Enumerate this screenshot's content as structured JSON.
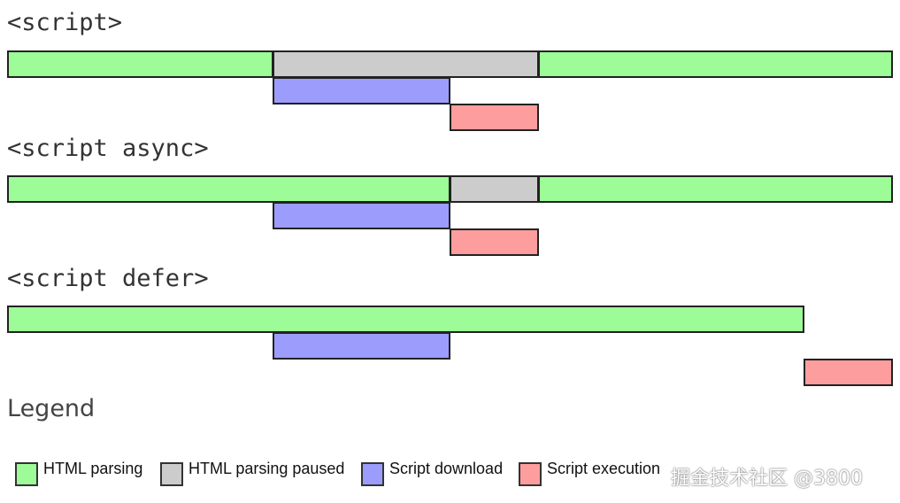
{
  "colors": {
    "parsing": "#9dfc97",
    "paused": "#cccccc",
    "download": "#9c9cfd",
    "execution": "#fd9d9d"
  },
  "sections": [
    {
      "title": "<script>",
      "events": [
        {
          "kind": "parsing",
          "start": 0,
          "end": 3
        },
        {
          "kind": "paused",
          "start": 3,
          "end": 6
        },
        {
          "kind": "parsing",
          "start": 6,
          "end": 10
        },
        {
          "kind": "download",
          "start": 3,
          "end": 5
        },
        {
          "kind": "execution",
          "start": 5,
          "end": 6
        }
      ]
    },
    {
      "title": "<script async>",
      "events": [
        {
          "kind": "parsing",
          "start": 0,
          "end": 5
        },
        {
          "kind": "paused",
          "start": 5,
          "end": 6
        },
        {
          "kind": "parsing",
          "start": 6,
          "end": 10
        },
        {
          "kind": "download",
          "start": 3,
          "end": 5
        },
        {
          "kind": "execution",
          "start": 5,
          "end": 6
        }
      ]
    },
    {
      "title": "<script defer>",
      "events": [
        {
          "kind": "parsing",
          "start": 0,
          "end": 9
        },
        {
          "kind": "download",
          "start": 3,
          "end": 5
        },
        {
          "kind": "execution",
          "start": 9,
          "end": 10
        }
      ]
    }
  ],
  "legend": {
    "title": "Legend",
    "items": [
      {
        "kind": "parsing",
        "label": "HTML parsing"
      },
      {
        "kind": "paused",
        "label": "HTML parsing paused"
      },
      {
        "kind": "download",
        "label": "Script download"
      },
      {
        "kind": "execution",
        "label": "Script execution"
      }
    ]
  },
  "watermark": "掘金技术社区 @3800"
}
